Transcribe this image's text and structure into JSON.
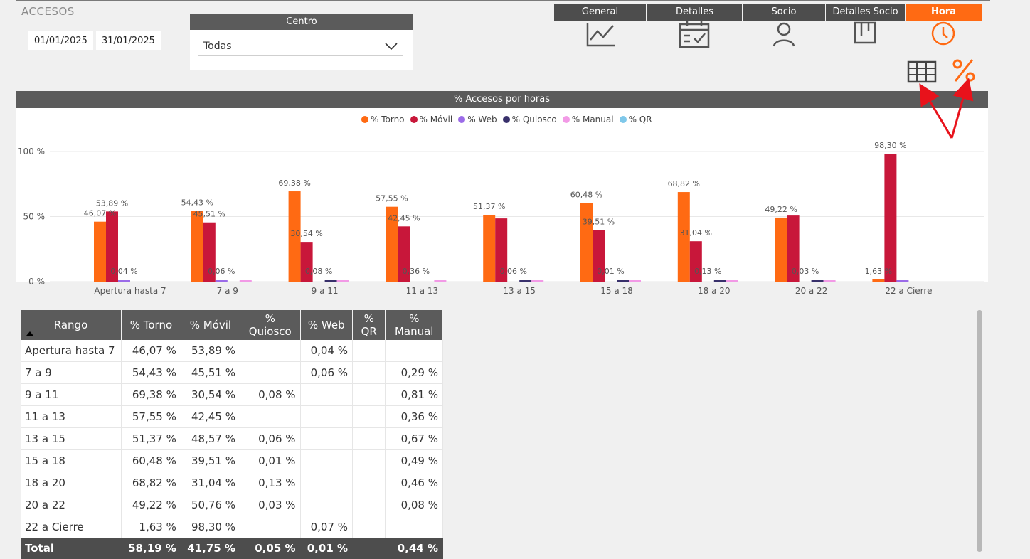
{
  "app": {
    "title": "ACCESOS"
  },
  "filters": {
    "date_from": "01/01/2025",
    "date_to": "31/01/2025",
    "centro_label": "Centro",
    "centro_value": "Todas"
  },
  "nav": {
    "tabs": [
      {
        "label": "General",
        "icon": "line-chart-icon"
      },
      {
        "label": "Detalles",
        "icon": "calendar-check-icon"
      },
      {
        "label": "Socio",
        "icon": "user-icon"
      },
      {
        "label": "Detalles Socio",
        "icon": "board-icon"
      },
      {
        "label": "Hora",
        "icon": "clock-icon",
        "active": true
      }
    ],
    "toggles": [
      {
        "icon": "table-grid-icon"
      },
      {
        "icon": "percent-icon",
        "active": true
      }
    ]
  },
  "colors": {
    "accent": "#ff6a13",
    "header": "#5b5b5b",
    "annotation_arrow": "#e8121b"
  },
  "chart_data": {
    "type": "bar",
    "title": "% Accesos por horas",
    "categories": [
      "Apertura hasta 7",
      "7 a 9",
      "9 a 11",
      "11 a 13",
      "13 a 15",
      "15 a 18",
      "18 a 20",
      "20 a 22",
      "22 a Cierre"
    ],
    "ylim": [
      0,
      100
    ],
    "yticks": [
      "0 %",
      "50 %",
      "100 %"
    ],
    "legend_position": "top-center",
    "grid": true,
    "series": [
      {
        "name": "% Torno",
        "color": "#ff6a13",
        "values": [
          46.07,
          54.43,
          69.38,
          57.55,
          51.37,
          60.48,
          68.82,
          49.22,
          1.63
        ]
      },
      {
        "name": "% Móvil",
        "color": "#c8173a",
        "values": [
          53.89,
          45.51,
          30.54,
          42.45,
          48.57,
          39.51,
          31.04,
          50.76,
          98.3
        ]
      },
      {
        "name": "% Web",
        "color": "#9b6be8",
        "values": [
          0.04,
          0.06,
          0,
          0,
          0,
          0,
          0,
          0,
          0.07
        ]
      },
      {
        "name": "% Quiosco",
        "color": "#38306b",
        "values": [
          0,
          0,
          0.08,
          0,
          0.06,
          0.01,
          0.13,
          0.03,
          0
        ]
      },
      {
        "name": "% Manual",
        "color": "#f29ae6",
        "values": [
          0,
          0.29,
          0.81,
          0.36,
          0.67,
          0.49,
          0.46,
          0.08,
          0
        ]
      },
      {
        "name": "% QR",
        "color": "#7fc8ea",
        "values": [
          0,
          0,
          0,
          0,
          0,
          0,
          0,
          0,
          0
        ]
      }
    ],
    "data_labels": [
      [
        "46,07 %",
        "53,89 %",
        "0,04 %"
      ],
      [
        "54,43 %",
        "45,51 %",
        "0,06 %"
      ],
      [
        "69,38 %",
        "30,54 %",
        "0,08 %"
      ],
      [
        "57,55 %",
        "42,45 %",
        "0,36 %"
      ],
      [
        "51,37 %",
        "",
        "0,06 %"
      ],
      [
        "60,48 %",
        "39,51 %",
        "0,01 %"
      ],
      [
        "68,82 %",
        "31,04 %",
        "0,13 %"
      ],
      [
        "49,22 %",
        "",
        "0,03 %"
      ],
      [
        "1,63 %",
        "98,30 %",
        ""
      ]
    ]
  },
  "table": {
    "headers": [
      "Rango",
      "% Torno",
      "% Móvil",
      "% Quiosco",
      "% Web",
      "% QR",
      "% Manual"
    ],
    "rows": [
      [
        "Apertura hasta 7",
        "46,07 %",
        "53,89 %",
        "",
        "0,04 %",
        "",
        ""
      ],
      [
        "7 a 9",
        "54,43 %",
        "45,51 %",
        "",
        "0,06 %",
        "",
        "0,29 %"
      ],
      [
        "9 a 11",
        "69,38 %",
        "30,54 %",
        "0,08 %",
        "",
        "",
        "0,81 %"
      ],
      [
        "11 a 13",
        "57,55 %",
        "42,45 %",
        "",
        "",
        "",
        "0,36 %"
      ],
      [
        "13 a 15",
        "51,37 %",
        "48,57 %",
        "0,06 %",
        "",
        "",
        "0,67 %"
      ],
      [
        "15 a 18",
        "60,48 %",
        "39,51 %",
        "0,01 %",
        "",
        "",
        "0,49 %"
      ],
      [
        "18 a 20",
        "68,82 %",
        "31,04 %",
        "0,13 %",
        "",
        "",
        "0,46 %"
      ],
      [
        "20 a 22",
        "49,22 %",
        "50,76 %",
        "0,03 %",
        "",
        "",
        "0,08 %"
      ],
      [
        "22 a Cierre",
        "1,63 %",
        "98,30 %",
        "",
        "0,07 %",
        "",
        ""
      ]
    ],
    "total": [
      "Total",
      "58,19 %",
      "41,75 %",
      "0,05 %",
      "0,01 %",
      "",
      "0,44 %"
    ]
  }
}
